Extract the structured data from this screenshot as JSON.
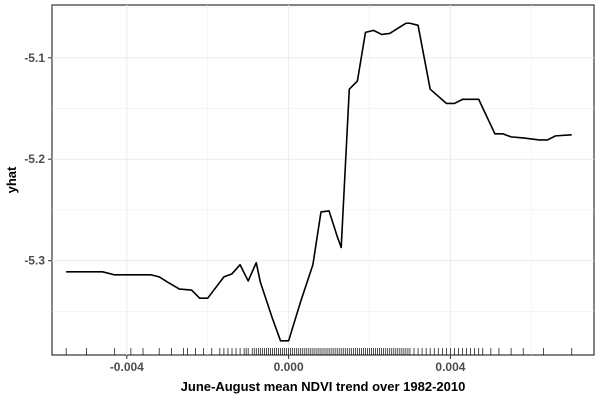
{
  "chart_data": {
    "type": "line",
    "title": "",
    "xlabel": "June-August mean NDVI trend over 1982-2010",
    "ylabel": "yhat",
    "xlim": [
      -0.00585,
      0.00755
    ],
    "ylim": [
      -5.393,
      -5.048
    ],
    "x_ticks": [
      -0.004,
      0.0,
      0.004
    ],
    "x_tick_labels": [
      "-0.004",
      "0.000",
      "0.004"
    ],
    "y_ticks": [
      -5.3,
      -5.2,
      -5.1
    ],
    "y_tick_labels": [
      "-5.3",
      "-5.2",
      "-5.1"
    ],
    "grid": true,
    "legend": "none",
    "line_color": "#000000",
    "grid_color": "#ebebeb",
    "series": [
      {
        "x": [
          -0.0055,
          -0.0046,
          -0.0043,
          -0.004,
          -0.0037,
          -0.0034,
          -0.0032,
          -0.003,
          -0.0027,
          -0.0024,
          -0.0022,
          -0.002,
          -0.0016,
          -0.0014,
          -0.0012,
          -0.001,
          -0.0008,
          -0.0007,
          -0.0004,
          -0.0002,
          0.0,
          0.0003,
          0.0006,
          0.0008,
          0.001,
          0.0012,
          0.0013,
          0.0015,
          0.0017,
          0.0019,
          0.0021,
          0.0023,
          0.0025,
          0.0027,
          0.0029,
          0.003,
          0.0032,
          0.0035,
          0.0039,
          0.0041,
          0.0043,
          0.0045,
          0.0047,
          0.0051,
          0.0053,
          0.0055,
          0.0058,
          0.0062,
          0.0064,
          0.0066,
          0.007
        ],
        "y": [
          -5.311,
          -5.311,
          -5.314,
          -5.314,
          -5.314,
          -5.314,
          -5.316,
          -5.321,
          -5.328,
          -5.329,
          -5.337,
          -5.337,
          -5.316,
          -5.313,
          -5.304,
          -5.32,
          -5.302,
          -5.321,
          -5.357,
          -5.379,
          -5.379,
          -5.34,
          -5.304,
          -5.252,
          -5.251,
          -5.276,
          -5.287,
          -5.131,
          -5.123,
          -5.075,
          -5.073,
          -5.077,
          -5.076,
          -5.071,
          -5.066,
          -5.066,
          -5.068,
          -5.131,
          -5.145,
          -5.145,
          -5.141,
          -5.141,
          -5.141,
          -5.175,
          -5.175,
          -5.178,
          -5.179,
          -5.181,
          -5.181,
          -5.177,
          -5.176
        ]
      }
    ],
    "rug_x": [
      -0.0055,
      -0.005,
      -0.0043,
      -0.0039,
      -0.0036,
      -0.0032,
      -0.0029,
      -0.0026,
      -0.0025,
      -0.0023,
      -0.0021,
      -0.0019,
      -0.0017,
      -0.0016,
      -0.0015,
      -0.0014,
      -0.0013,
      -0.0012,
      -0.0011,
      -0.00105,
      -0.001,
      -0.0009,
      -0.00085,
      -0.0008,
      -0.00075,
      -0.0007,
      -0.00065,
      -0.0006,
      -0.00055,
      -0.0005,
      -0.00045,
      -0.0004,
      -0.00035,
      -0.0003,
      -0.00025,
      -0.0002,
      -0.00015,
      -0.0001,
      -5e-05,
      0.0,
      5e-05,
      0.0001,
      0.00015,
      0.0002,
      0.00025,
      0.0003,
      0.00035,
      0.0004,
      0.00045,
      0.0005,
      0.00055,
      0.0006,
      0.00065,
      0.0007,
      0.00075,
      0.0008,
      0.00085,
      0.0009,
      0.00095,
      0.001,
      0.00105,
      0.0011,
      0.00115,
      0.0012,
      0.00125,
      0.0013,
      0.00135,
      0.0014,
      0.00145,
      0.0015,
      0.00155,
      0.0016,
      0.00165,
      0.0017,
      0.00175,
      0.0018,
      0.00185,
      0.0019,
      0.00195,
      0.002,
      0.00205,
      0.0021,
      0.00215,
      0.0022,
      0.00225,
      0.0023,
      0.00235,
      0.0024,
      0.00245,
      0.0025,
      0.00255,
      0.0026,
      0.00265,
      0.0027,
      0.00275,
      0.0028,
      0.00285,
      0.0029,
      0.00295,
      0.003,
      0.0031,
      0.0032,
      0.0033,
      0.0034,
      0.0035,
      0.0036,
      0.0037,
      0.0038,
      0.0039,
      0.004,
      0.0041,
      0.0042,
      0.0043,
      0.0044,
      0.0045,
      0.0046,
      0.0047,
      0.0048,
      0.005,
      0.0052,
      0.0055,
      0.0058,
      0.0063,
      0.007
    ]
  }
}
